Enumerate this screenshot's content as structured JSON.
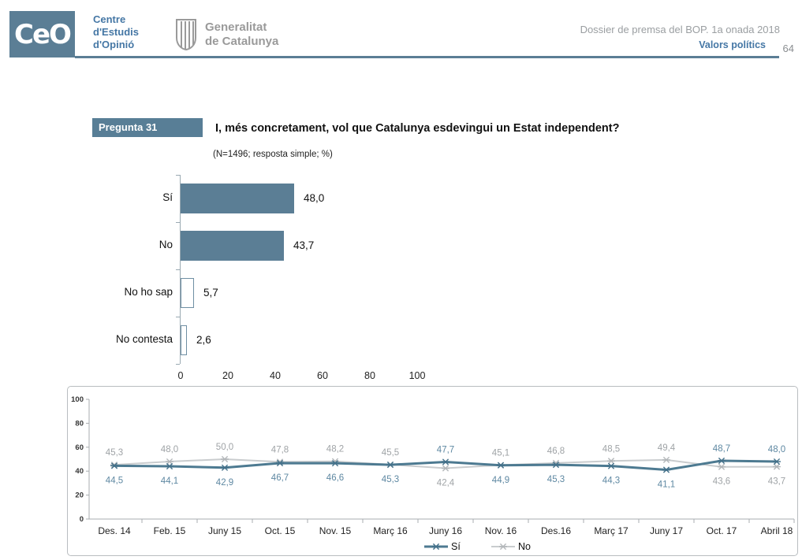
{
  "header": {
    "logo_text": "CeO",
    "org_name_lines": [
      "Centre",
      "d'Estudis",
      "d'Opinió"
    ],
    "gov_name_lines": [
      "Generalitat",
      "de Catalunya"
    ],
    "dossier": "Dossier de premsa del BOP. 1a onada 2018",
    "section": "Valors polítics",
    "page_number": "64"
  },
  "question": {
    "tag": "Pregunta 31",
    "title": "I, més concretament, vol que Catalunya esdevingui un Estat independent?",
    "subtitle": "(N=1496; resposta simple; %)"
  },
  "colors": {
    "slate": "#5b7e95",
    "bar_fill": "#5b7e95",
    "bar_outline": "#6f8fa3",
    "axis_gray": "#a9adb0",
    "header_blue": "#4577a5"
  },
  "chart_data": [
    {
      "type": "bar",
      "orientation": "horizontal",
      "title": "",
      "categories": [
        "Sí",
        "No",
        "No ho sap",
        "No contesta"
      ],
      "values": [
        48.0,
        43.7,
        5.7,
        2.6
      ],
      "value_labels": [
        "48,0",
        "43,7",
        "5,7",
        "2,6"
      ],
      "filled": [
        true,
        true,
        false,
        false
      ],
      "xlim": [
        0,
        100
      ],
      "x_ticks": [
        0,
        20,
        40,
        60,
        80,
        100
      ],
      "grid": false
    },
    {
      "type": "line",
      "title": "",
      "categories": [
        "Des. 14",
        "Feb. 15",
        "Juny 15",
        "Oct. 15",
        "Nov. 15",
        "Març 16",
        "Juny 16",
        "Nov. 16",
        "Des.16",
        "Març 17",
        "Juny 17",
        "Oct. 17",
        "Abril 18"
      ],
      "series": [
        {
          "name": "Sí",
          "values": [
            44.5,
            44.1,
            42.9,
            46.7,
            46.6,
            45.3,
            47.7,
            44.9,
            45.3,
            44.3,
            41.1,
            48.7,
            48.0
          ],
          "labels": [
            "44,5",
            "44,1",
            "42,9",
            "46,7",
            "46,6",
            "45,3",
            "47,7",
            "44,9",
            "45,3",
            "44,3",
            "41,1",
            "48,7",
            "48,0"
          ],
          "color": "#4d7a91",
          "label_color": "#5e88a2",
          "marker_color": "#44718a",
          "line_width": 3
        },
        {
          "name": "No",
          "values": [
            45.3,
            48.0,
            50.0,
            47.8,
            48.2,
            45.5,
            42.4,
            45.1,
            46.8,
            48.5,
            49.4,
            43.6,
            43.7
          ],
          "labels": [
            "45,3",
            "48,0",
            "50,0",
            "47,8",
            "48,2",
            "45,5",
            "42,4",
            "45,1",
            "46,8",
            "48,5",
            "49,4",
            "43,6",
            "43,7"
          ],
          "color": "#c9ccce",
          "label_color": "#9fa3a6",
          "marker_color": "#b3b7ba",
          "line_width": 2
        }
      ],
      "ylim": [
        0,
        100
      ],
      "y_ticks": [
        0,
        20,
        40,
        60,
        80,
        100
      ],
      "legend_position": "bottom",
      "grid": false
    }
  ]
}
